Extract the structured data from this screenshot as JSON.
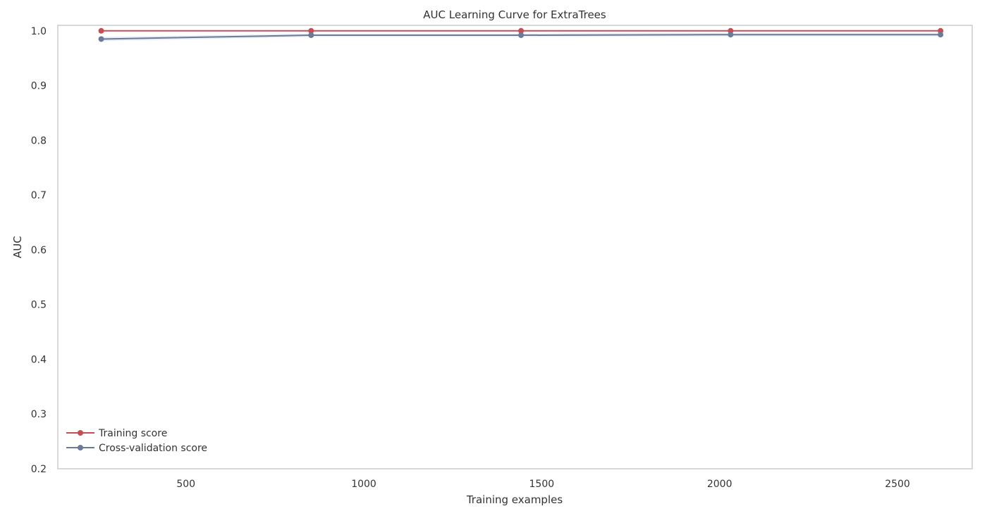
{
  "chart_data": {
    "type": "line",
    "title": "AUC Learning Curve for ExtraTrees",
    "xlabel": "Training examples",
    "ylabel": "AUC",
    "xlim": [
      140,
      2710
    ],
    "ylim": [
      0.2,
      1.01
    ],
    "xticks": [
      500,
      1000,
      1500,
      2000,
      2500
    ],
    "yticks": [
      0.2,
      0.3,
      0.4,
      0.5,
      0.6,
      0.7,
      0.8,
      0.9,
      1.0
    ],
    "grid": false,
    "legend_position": "lower-left",
    "x": [
      262,
      852,
      1442,
      2031,
      2621
    ],
    "series": [
      {
        "name": "Training score",
        "color": "#c44e52",
        "values": [
          1.0,
          1.0,
          1.0,
          1.0,
          1.0
        ],
        "band": [
          [
            1.0,
            1.0
          ],
          [
            1.0,
            1.0
          ],
          [
            1.0,
            1.0
          ],
          [
            1.0,
            1.0
          ],
          [
            1.0,
            1.0
          ]
        ]
      },
      {
        "name": "Cross-validation score",
        "color": "#4c72b0",
        "line_color": "#6b7a99",
        "values": [
          0.985,
          0.992,
          0.992,
          0.993,
          0.993
        ],
        "band": [
          [
            0.981,
            0.989
          ],
          [
            0.989,
            0.995
          ],
          [
            0.989,
            0.995
          ],
          [
            0.99,
            0.996
          ],
          [
            0.99,
            0.996
          ]
        ]
      }
    ]
  }
}
